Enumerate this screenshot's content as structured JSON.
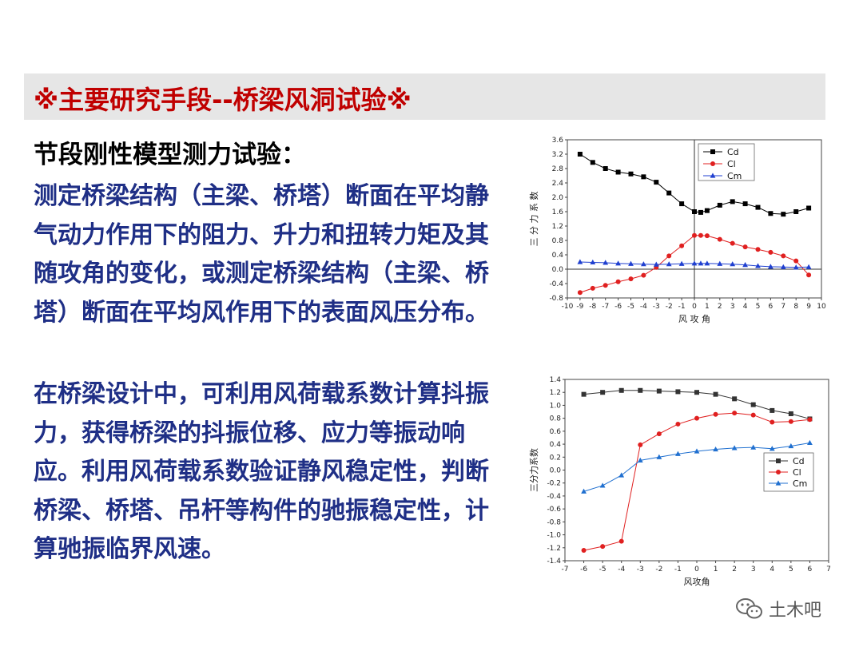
{
  "title": "※主要研究手段--桥梁风洞试验※",
  "subheading": "节段刚性模型测力试验：",
  "paragraphs": [
    "测定桥梁结构（主梁、桥塔）断面在平均静气动力作用下的阻力、升力和扭转力矩及其随攻角的变化，或测定桥梁结构（主梁、桥塔）断面在平均风作用下的表面风压分布。",
    "在桥梁设计中，可利用风荷载系数计算抖振力，获得桥梁的抖振位移、应力等振动响应。利用风荷载系数验证静风稳定性，判断桥梁、桥塔、吊杆等构件的驰振稳定性，计算驰振临界风速。"
  ],
  "watermark": "土木吧",
  "chart_data": [
    {
      "type": "line",
      "xlabel": "风 攻 角",
      "ylabel": "三 分 力 系 数",
      "xlim": [
        -10,
        10
      ],
      "ylim": [
        -0.8,
        3.6
      ],
      "xticks": [
        -10,
        -9,
        -8,
        -7,
        -6,
        -5,
        -4,
        -3,
        -2,
        -1,
        0,
        1,
        2,
        3,
        4,
        5,
        6,
        7,
        8,
        9,
        10
      ],
      "yticks": [
        -0.8,
        -0.4,
        0.0,
        0.4,
        0.8,
        1.2,
        1.6,
        2.0,
        2.4,
        2.8,
        3.2,
        3.6
      ],
      "legend_position": "top-right",
      "series": [
        {
          "name": "Cd",
          "color": "#000000",
          "marker": "square",
          "x": [
            -9,
            -8,
            -7,
            -6,
            -5,
            -4,
            -3,
            -2,
            -1,
            0,
            0.5,
            1,
            2,
            3,
            4,
            5,
            6,
            7,
            8,
            9
          ],
          "values": [
            3.2,
            2.97,
            2.8,
            2.7,
            2.65,
            2.57,
            2.42,
            2.12,
            1.82,
            1.6,
            1.58,
            1.63,
            1.78,
            1.88,
            1.82,
            1.72,
            1.55,
            1.53,
            1.6,
            1.7
          ]
        },
        {
          "name": "Cl",
          "color": "#e02020",
          "marker": "circle",
          "x": [
            -9,
            -8,
            -7,
            -6,
            -5,
            -4,
            -3,
            -2,
            -1,
            0,
            0.5,
            1,
            2,
            3,
            4,
            5,
            6,
            7,
            8,
            9
          ],
          "values": [
            -0.65,
            -0.53,
            -0.45,
            -0.35,
            -0.27,
            -0.17,
            0.05,
            0.37,
            0.65,
            0.94,
            0.94,
            0.93,
            0.83,
            0.72,
            0.62,
            0.55,
            0.47,
            0.37,
            0.23,
            -0.16
          ]
        },
        {
          "name": "Cm",
          "color": "#2040d0",
          "marker": "triangle",
          "x": [
            -9,
            -8,
            -7,
            -6,
            -5,
            -4,
            -3,
            -2,
            -1,
            0,
            0.5,
            1,
            2,
            3,
            4,
            5,
            6,
            7,
            8,
            9
          ],
          "values": [
            0.2,
            0.19,
            0.18,
            0.16,
            0.15,
            0.14,
            0.13,
            0.14,
            0.15,
            0.16,
            0.16,
            0.16,
            0.15,
            0.14,
            0.12,
            0.09,
            0.07,
            0.06,
            0.05,
            0.06
          ]
        }
      ]
    },
    {
      "type": "line",
      "xlabel": "风攻角",
      "ylabel": "三分力系数",
      "xlim": [
        -7,
        7
      ],
      "ylim": [
        -1.4,
        1.4
      ],
      "xticks": [
        -7,
        -6,
        -5,
        -4,
        -3,
        -2,
        -1,
        0,
        1,
        2,
        3,
        4,
        5,
        6,
        7
      ],
      "yticks": [
        -1.4,
        -1.2,
        -1.0,
        -0.8,
        -0.6,
        -0.4,
        -0.2,
        0.0,
        0.2,
        0.4,
        0.6,
        0.8,
        1.0,
        1.2,
        1.4
      ],
      "legend_position": "center-right",
      "series": [
        {
          "name": "Cd",
          "color": "#333333",
          "marker": "square",
          "x": [
            -6,
            -5,
            -4,
            -3,
            -2,
            -1,
            0,
            1,
            2,
            3,
            4,
            5,
            6
          ],
          "values": [
            1.17,
            1.2,
            1.23,
            1.23,
            1.22,
            1.21,
            1.2,
            1.17,
            1.1,
            1.01,
            0.92,
            0.87,
            0.79
          ]
        },
        {
          "name": "Cl",
          "color": "#e02020",
          "marker": "circle",
          "x": [
            -6,
            -5,
            -4,
            -3,
            -2,
            -1,
            0,
            1,
            2,
            3,
            4,
            5,
            6
          ],
          "values": [
            -1.24,
            -1.18,
            -1.1,
            0.39,
            0.56,
            0.71,
            0.8,
            0.86,
            0.88,
            0.85,
            0.74,
            0.75,
            0.78
          ]
        },
        {
          "name": "Cm",
          "color": "#2070d0",
          "marker": "triangle",
          "x": [
            -6,
            -5,
            -4,
            -3,
            -2,
            -1,
            0,
            1,
            2,
            3,
            4,
            5,
            6
          ],
          "values": [
            -0.33,
            -0.24,
            -0.08,
            0.15,
            0.2,
            0.25,
            0.29,
            0.32,
            0.34,
            0.35,
            0.33,
            0.37,
            0.42
          ]
        }
      ]
    }
  ]
}
